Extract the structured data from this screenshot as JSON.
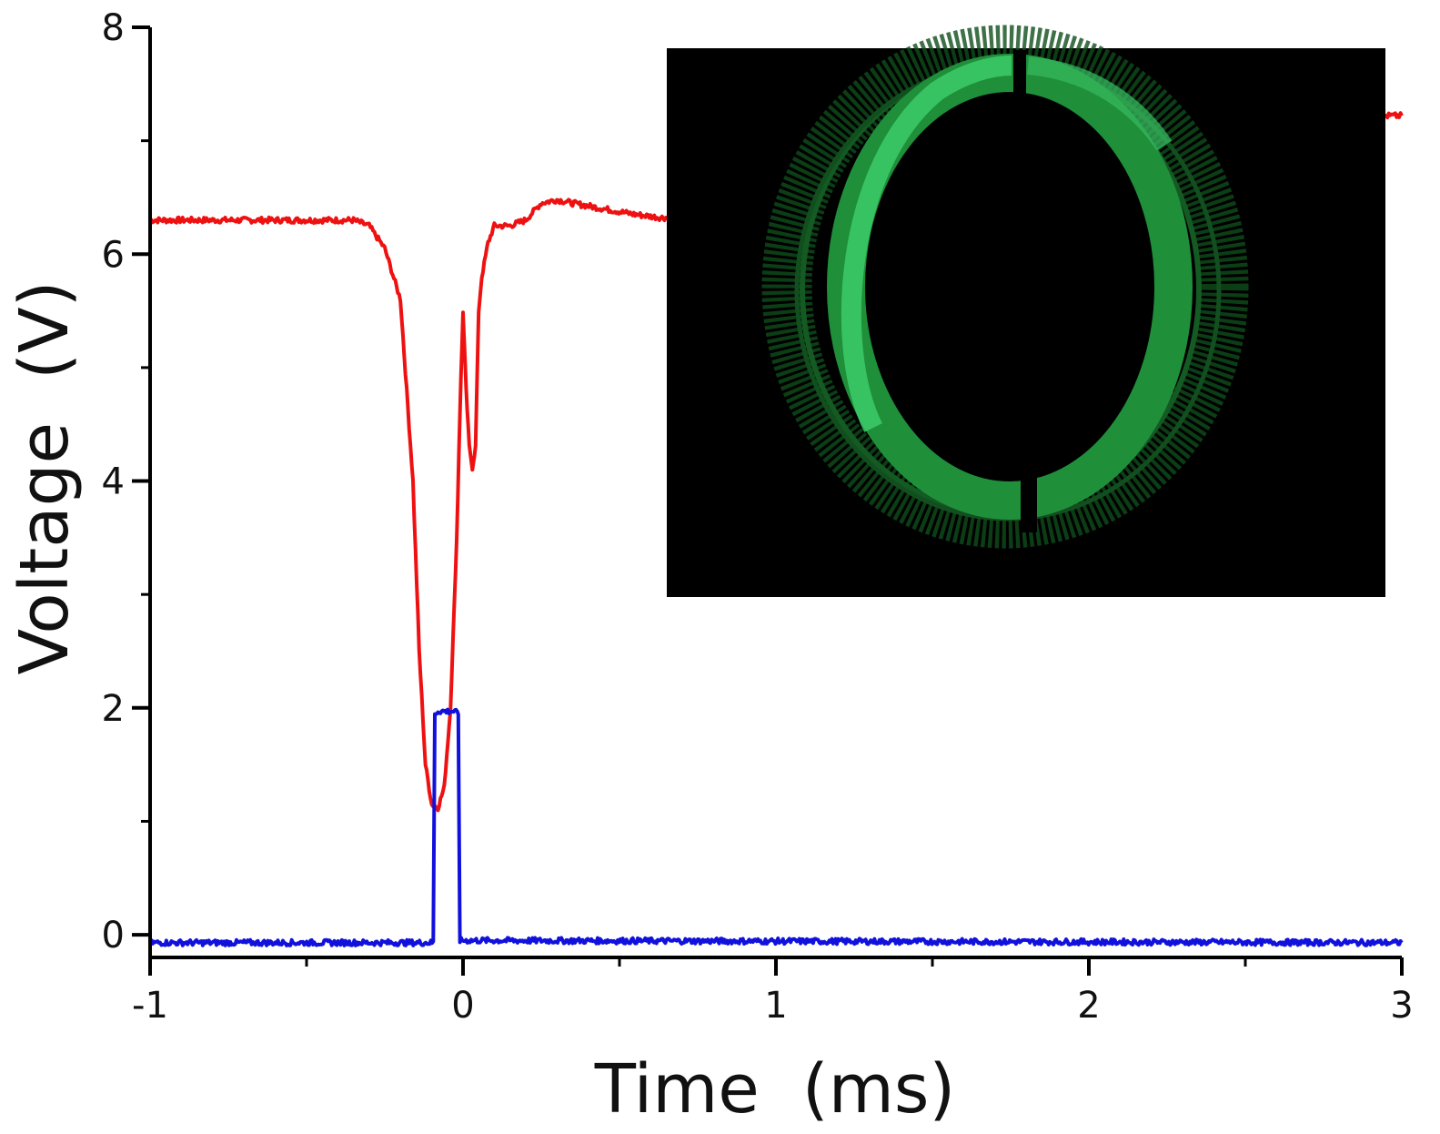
{
  "chart_data": {
    "type": "line",
    "xlabel": "Time  (ms)",
    "ylabel": "Voltage  (V)",
    "xlim": [
      -1,
      3
    ],
    "ylim": [
      -0.2,
      8
    ],
    "x_ticks": [
      -1,
      0,
      1,
      2,
      3
    ],
    "x_tick_labels": [
      "-1",
      "0",
      "1",
      "2",
      "3"
    ],
    "y_ticks": [
      0,
      2,
      4,
      6,
      8
    ],
    "y_tick_labels": [
      "0",
      "2",
      "4",
      "6",
      "8"
    ],
    "grid": false,
    "legend": "none",
    "series": [
      {
        "color": "#ee1111",
        "x": [
          -1.0,
          -0.6,
          -0.35,
          -0.3,
          -0.25,
          -0.2,
          -0.16,
          -0.14,
          -0.12,
          -0.1,
          -0.08,
          -0.06,
          -0.04,
          -0.02,
          -0.01,
          0.0,
          0.01,
          0.02,
          0.03,
          0.04,
          0.05,
          0.06,
          0.08,
          0.1,
          0.15,
          0.2,
          0.25,
          0.3,
          0.35,
          0.45,
          0.55,
          0.64,
          2.95,
          3.0
        ],
        "y": [
          6.3,
          6.3,
          6.3,
          6.25,
          6.05,
          5.6,
          4.0,
          2.5,
          1.5,
          1.15,
          1.12,
          1.3,
          2.0,
          3.5,
          4.6,
          5.5,
          4.8,
          4.3,
          4.12,
          4.3,
          5.5,
          5.8,
          6.1,
          6.25,
          6.25,
          6.3,
          6.45,
          6.48,
          6.45,
          6.4,
          6.35,
          6.32,
          7.22,
          7.22
        ]
      },
      {
        "color": "#1111dd",
        "x": [
          -1.0,
          -0.095,
          -0.09,
          -0.08,
          -0.03,
          -0.015,
          -0.01,
          3.0
        ],
        "y": [
          -0.07,
          -0.07,
          1.95,
          1.97,
          1.97,
          1.95,
          -0.05,
          -0.07
        ]
      }
    ]
  },
  "inset": {
    "description_icon": "green-ring-image-icon",
    "background_color": "#000000",
    "ring_color": "#1f8f3a",
    "highlight_color": "#3dcc6b"
  }
}
